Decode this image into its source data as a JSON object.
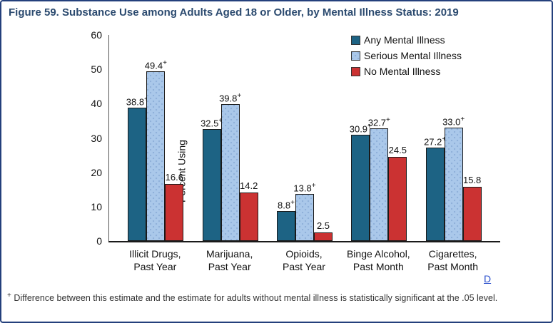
{
  "figure": {
    "title": "Figure 59. Substance Use among Adults Aged 18 or Older, by Mental Illness Status: 2019",
    "footnote_marker": "+",
    "footnote": " Difference between this estimate and the estimate for adults without mental illness is statistically significant at the .05 level.",
    "data_link_label": "D"
  },
  "colors": {
    "figure_border": "#24407c",
    "title_text": "#2b4a6f",
    "any_mental_illness": "#1d6384",
    "serious_mental_illness": "#aac8ea",
    "serious_mental_illness_dots": "#8fb0d9",
    "no_mental_illness": "#cb3232",
    "bar_outline": "#1a1a1a",
    "link": "#2b50cc"
  },
  "chart_data": {
    "type": "bar",
    "title": "",
    "xlabel": "",
    "ylabel": "Percent Using",
    "ylim": [
      0,
      60
    ],
    "yticks": [
      0,
      10,
      20,
      30,
      40,
      50,
      60
    ],
    "grid": false,
    "legend_position": "top-right",
    "sig_marker": "+",
    "categories": [
      [
        "Illicit Drugs,",
        "Past Year"
      ],
      [
        "Marijuana,",
        "Past Year"
      ],
      [
        "Opioids,",
        "Past Year"
      ],
      [
        "Binge Alcohol,",
        "Past Month"
      ],
      [
        "Cigarettes,",
        "Past Month"
      ]
    ],
    "series": [
      {
        "name": "Any Mental Illness",
        "color_key": "any_mental_illness",
        "values": [
          38.8,
          32.5,
          8.8,
          30.9,
          27.2
        ],
        "labels": [
          "38.8",
          "32.5",
          "8.8",
          "30.9",
          "27.2"
        ],
        "significant": [
          true,
          true,
          true,
          true,
          true
        ]
      },
      {
        "name": "Serious Mental Illness",
        "color_key": "serious_mental_illness",
        "values": [
          49.4,
          39.8,
          13.8,
          32.7,
          33.0
        ],
        "labels": [
          "49.4",
          "39.8",
          "13.8",
          "32.7",
          "33.0"
        ],
        "significant": [
          true,
          true,
          true,
          true,
          true
        ]
      },
      {
        "name": "No Mental Illness",
        "color_key": "no_mental_illness",
        "values": [
          16.6,
          14.2,
          2.5,
          24.5,
          15.8
        ],
        "labels": [
          "16.6",
          "14.2",
          "2.5",
          "24.5",
          "15.8"
        ],
        "significant": [
          false,
          false,
          false,
          false,
          false
        ]
      }
    ]
  }
}
